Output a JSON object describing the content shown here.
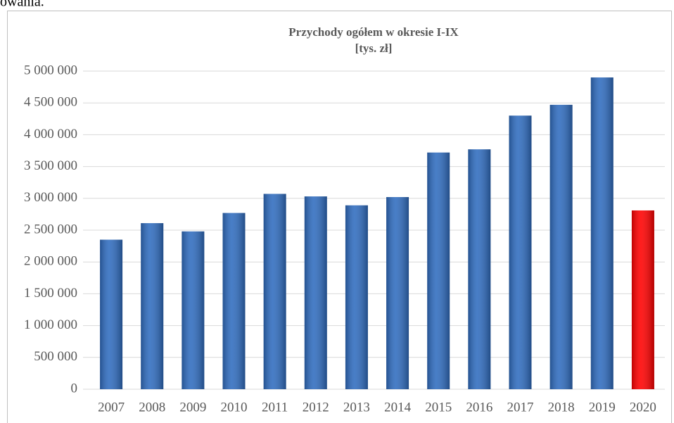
{
  "caption_fragment": "owania.",
  "chart_data": {
    "type": "bar",
    "title": "Przychody ogółem w okresie I-IX",
    "subtitle": "[tys. zł]",
    "categories": [
      "2007",
      "2008",
      "2009",
      "2010",
      "2011",
      "2012",
      "2013",
      "2014",
      "2015",
      "2016",
      "2017",
      "2018",
      "2019",
      "2020"
    ],
    "values": [
      2350000,
      2610000,
      2480000,
      2770000,
      3070000,
      3030000,
      2890000,
      3020000,
      3720000,
      3770000,
      4300000,
      4470000,
      4900000,
      2810000
    ],
    "colors": [
      "#2f6cbf",
      "#2f6cbf",
      "#2f6cbf",
      "#2f6cbf",
      "#2f6cbf",
      "#2f6cbf",
      "#2f6cbf",
      "#2f6cbf",
      "#2f6cbf",
      "#2f6cbf",
      "#2f6cbf",
      "#2f6cbf",
      "#2f6cbf",
      "#ff0000"
    ],
    "ylim": [
      0,
      5000000
    ],
    "yticks": [
      0,
      {
        "value": 500000,
        "label": "500 000"
      },
      {
        "value": 1000000,
        "label": "1 000 000"
      },
      {
        "value": 1500000,
        "label": "1 500 000"
      },
      {
        "value": 2000000,
        "label": "2 000 000"
      },
      {
        "value": 2500000,
        "label": "2 500 000"
      },
      {
        "value": 3000000,
        "label": "3 000 000"
      },
      {
        "value": 3500000,
        "label": "3 500 000"
      },
      {
        "value": 4000000,
        "label": "4 000 000"
      },
      {
        "value": 4500000,
        "label": "4 500 000"
      },
      {
        "value": 5000000,
        "label": "5 000 000"
      }
    ],
    "grid": true
  }
}
